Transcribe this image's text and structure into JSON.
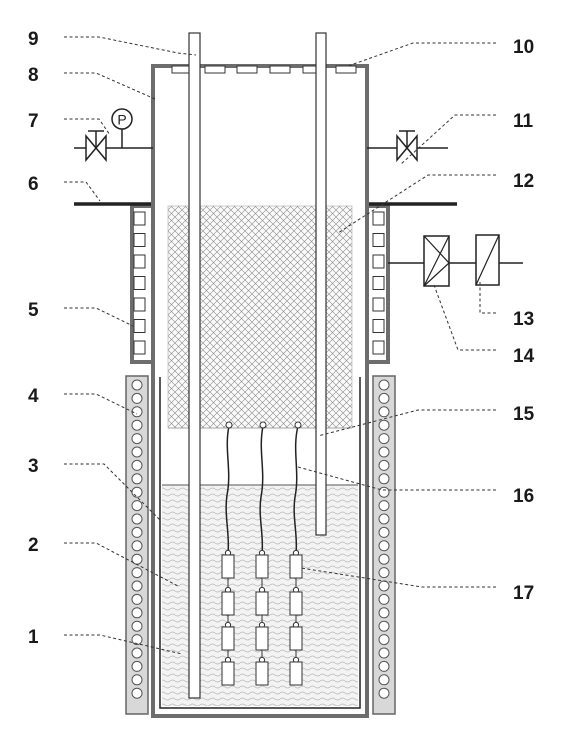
{
  "callouts": [
    {
      "id": "1",
      "text": "1"
    },
    {
      "id": "2",
      "text": "2"
    },
    {
      "id": "3",
      "text": "3"
    },
    {
      "id": "4",
      "text": "4"
    },
    {
      "id": "5",
      "text": "5"
    },
    {
      "id": "6",
      "text": "6"
    },
    {
      "id": "7",
      "text": "7"
    },
    {
      "id": "8",
      "text": "8"
    },
    {
      "id": "9",
      "text": "9"
    },
    {
      "id": "10",
      "text": "10"
    },
    {
      "id": "11",
      "text": "11"
    },
    {
      "id": "12",
      "text": "12"
    },
    {
      "id": "13",
      "text": "13"
    },
    {
      "id": "14",
      "text": "14"
    },
    {
      "id": "15",
      "text": "15"
    },
    {
      "id": "16",
      "text": "16"
    },
    {
      "id": "17",
      "text": "17"
    }
  ],
  "gauge_label": "P",
  "icons": [
    "valve-icon",
    "pressure-gauge-icon",
    "heater-coil-icon",
    "sample-holder-icon",
    "rectifier-icon"
  ]
}
